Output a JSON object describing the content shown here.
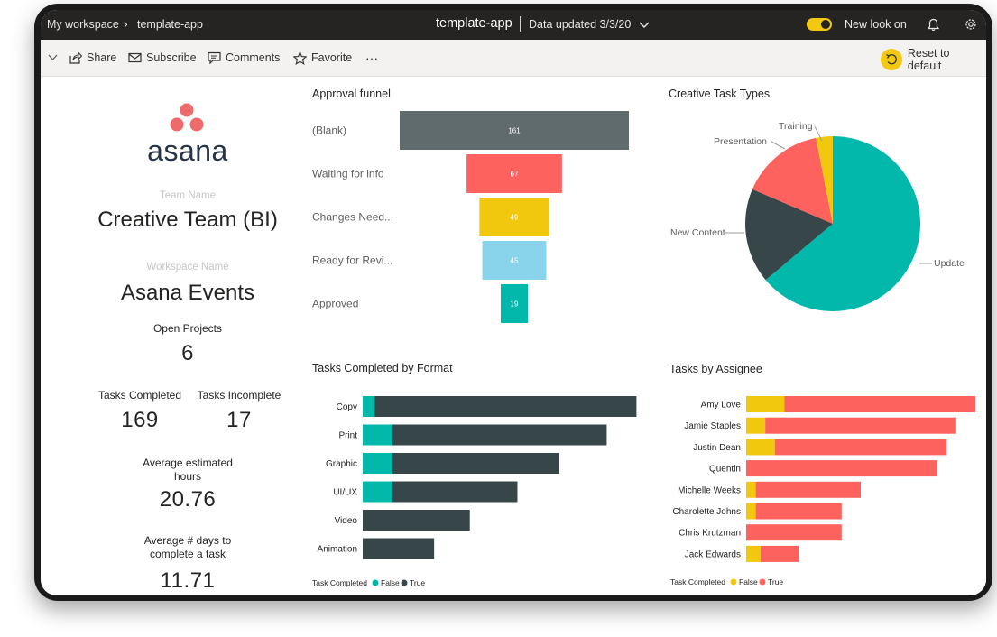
{
  "titlebar": {
    "workspace": "My workspace",
    "app": "template-app",
    "title": "template-app",
    "updated": "Data updated 3/3/20",
    "new_look": "New look on"
  },
  "toolbar": {
    "share": "Share",
    "subscribe": "Subscribe",
    "comments": "Comments",
    "favorite": "Favorite",
    "more": "···",
    "reset": "Reset to default"
  },
  "summary": {
    "logo_text": "asana",
    "team_label": "Team Name",
    "team_value": "Creative Team (BI)",
    "workspace_label": "Workspace Name",
    "workspace_value": "Asana Events",
    "open_projects_label": "Open Projects",
    "open_projects_value": "6",
    "completed_label": "Tasks Completed",
    "completed_value": "169",
    "incomplete_label": "Tasks Incomplete",
    "incomplete_value": "17",
    "avg_hours_label_1": "Average estimated",
    "avg_hours_label_2": "hours",
    "avg_hours_value": "20.76",
    "avg_days_label_1": "Average # days to",
    "avg_days_label_2": "complete a task",
    "avg_days_value": "11.71"
  },
  "colors": {
    "teal": "#01b8aa",
    "dark": "#374649",
    "gray": "#5f6b6d",
    "red": "#fd625e",
    "yellow": "#f2c80f",
    "light_blue": "#8ad4eb",
    "asana_pink": "#f06a6a"
  },
  "chart_data": [
    {
      "type": "funnel",
      "title": "Approval funnel",
      "categories": [
        "(Blank)",
        "Waiting for info",
        "Changes Need...",
        "Ready for Revi...",
        "Approved"
      ],
      "values": [
        161,
        67,
        49,
        45,
        19
      ],
      "colors": [
        "#5f6b6d",
        "#fd625e",
        "#f2c80f",
        "#8ad4eb",
        "#01b8aa"
      ]
    },
    {
      "type": "pie",
      "title": "Creative Task Types",
      "labels": [
        "Update",
        "New Content",
        "Presentation",
        "Training"
      ],
      "values": [
        62,
        17,
        15,
        3
      ],
      "colors": [
        "#01b8aa",
        "#374649",
        "#fd625e",
        "#f2c80f"
      ]
    },
    {
      "type": "bar",
      "stacked": true,
      "orientation": "horizontal",
      "title": "Tasks Completed by Format",
      "categories": [
        "Copy",
        "Print",
        "Graphic",
        "UI/UX",
        "Video",
        "Animation"
      ],
      "series": [
        {
          "name": "False",
          "values": [
            2,
            5,
            5,
            5,
            0,
            0
          ],
          "color": "#01b8aa"
        },
        {
          "name": "True",
          "values": [
            44,
            36,
            28,
            21,
            18,
            12
          ],
          "color": "#374649"
        }
      ],
      "legend_title": "Task Completed",
      "xlim": [
        0,
        47
      ]
    },
    {
      "type": "bar",
      "stacked": true,
      "orientation": "horizontal",
      "title": "Tasks by Assignee",
      "categories": [
        "Amy Love",
        "Jamie Staples",
        "Justin Dean",
        "Quentin",
        "Michelle Weeks",
        "Charolette Johns",
        "Chris Krutzman",
        "Jack Edwards"
      ],
      "series": [
        {
          "name": "False",
          "values": [
            4,
            2,
            3,
            0,
            1,
            1,
            0,
            1.5
          ],
          "color": "#f2c80f"
        },
        {
          "name": "True",
          "values": [
            20,
            20,
            18,
            20,
            11,
            9,
            10,
            4
          ],
          "color": "#fd625e"
        }
      ],
      "legend_title": "Task Completed",
      "xlim": [
        0,
        24
      ]
    }
  ]
}
